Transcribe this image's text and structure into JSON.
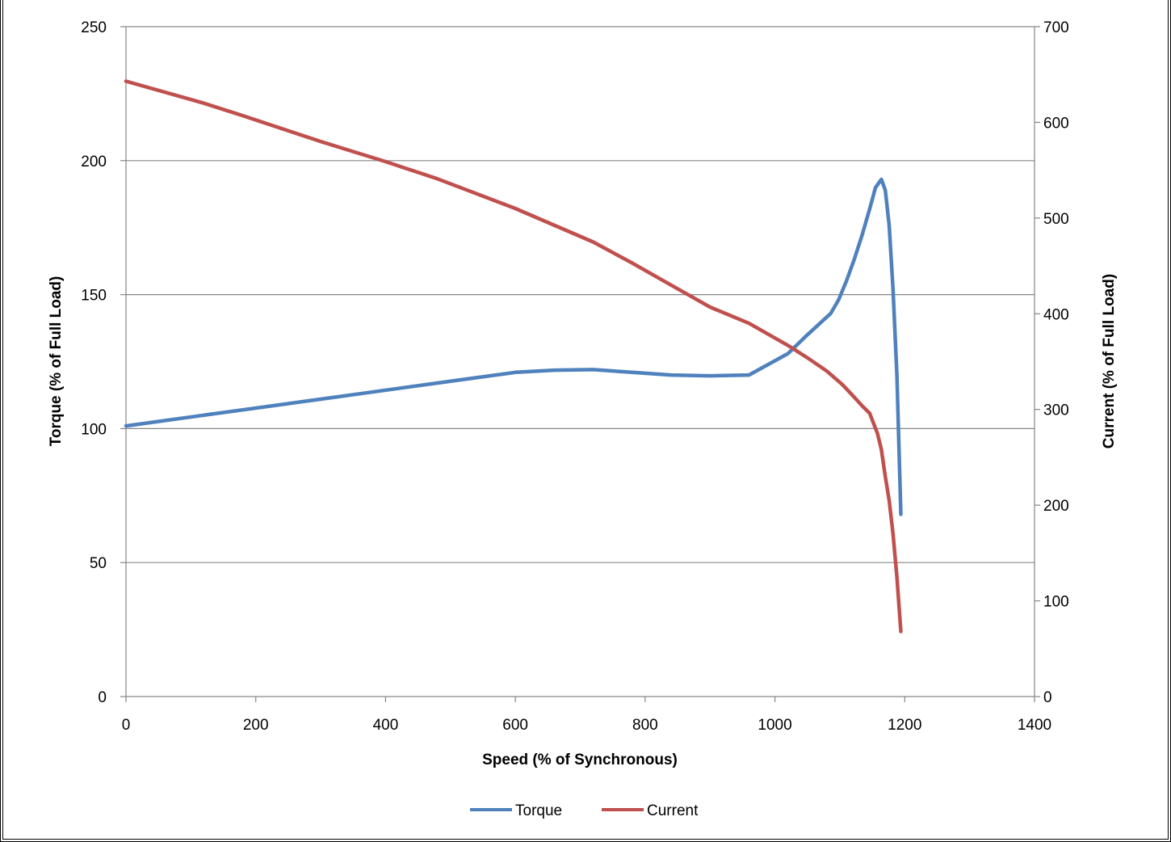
{
  "chart_data": {
    "type": "line",
    "xlabel": "Speed (% of Synchronous)",
    "ylabel_left": "Torque (% of Full Load)",
    "ylabel_right": "Current (% of Full Load)",
    "xlim": [
      0,
      1400
    ],
    "ylim_left": [
      0,
      250
    ],
    "ylim_right": [
      0,
      700
    ],
    "x_ticks": [
      "0",
      "200",
      "400",
      "600",
      "800",
      "1000",
      "1200",
      "1400"
    ],
    "y_left_ticks": [
      "0",
      "50",
      "100",
      "150",
      "200",
      "250"
    ],
    "y_right_ticks": [
      "0",
      "100",
      "200",
      "300",
      "400",
      "500",
      "600",
      "700"
    ],
    "grid": "horizontal",
    "legend_position": "bottom",
    "series": [
      {
        "name": "Torque",
        "axis": "left",
        "color": "#4f81bd",
        "x": [
          0,
          120,
          240,
          360,
          480,
          540,
          600,
          660,
          720,
          780,
          840,
          900,
          960,
          1020,
          1050,
          1086,
          1098,
          1110,
          1122,
          1134,
          1146,
          1155,
          1164,
          1170,
          1176,
          1182,
          1188,
          1194
        ],
        "y": [
          101,
          105,
          109,
          113,
          117,
          119,
          121,
          121.8,
          122,
          121,
          120,
          119.7,
          120,
          128,
          135,
          143,
          148,
          155,
          163,
          172,
          182,
          190,
          193,
          189,
          176,
          152,
          120,
          68
        ]
      },
      {
        "name": "Current",
        "axis": "right",
        "color": "#c0504d",
        "x": [
          0,
          120,
          180,
          300,
          400,
          480,
          600,
          720,
          780,
          840,
          900,
          960,
          1020,
          1050,
          1080,
          1104,
          1122,
          1134,
          1146,
          1158,
          1164,
          1170,
          1176,
          1182,
          1188,
          1194
        ],
        "y": [
          643,
          620,
          607,
          580,
          559,
          541,
          510,
          475,
          453,
          430,
          407,
          390,
          367,
          354,
          340,
          326,
          313,
          304,
          296,
          275,
          258,
          230,
          205,
          170,
          125,
          68
        ]
      }
    ]
  }
}
